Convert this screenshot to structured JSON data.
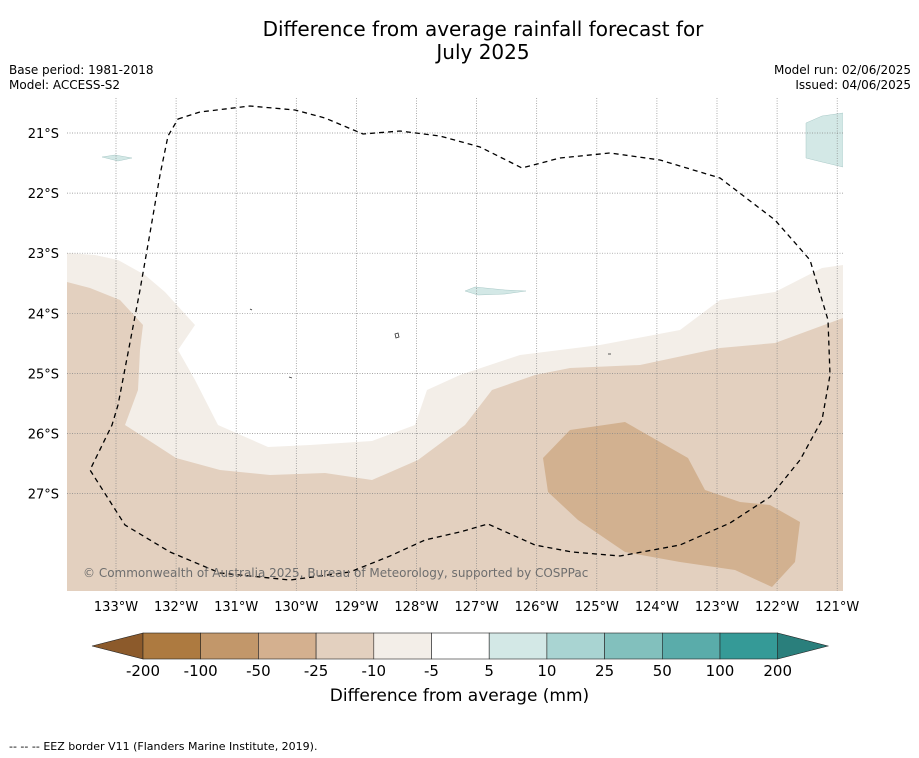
{
  "header": {
    "title_line1": "Difference from average rainfall forecast for",
    "title_line2": "July 2025",
    "base_period": "Base period: 1981-2018",
    "model": "Model: ACCESS-S2",
    "model_run": "Model run: 02/06/2025",
    "issued": "Issued: 04/06/2025"
  },
  "map": {
    "lat_labels": [
      "21°S",
      "22°S",
      "23°S",
      "24°S",
      "25°S",
      "26°S",
      "27°S"
    ],
    "lon_labels": [
      "133°W",
      "132°W",
      "131°W",
      "130°W",
      "129°W",
      "128°W",
      "127°W",
      "126°W",
      "125°W",
      "124°W",
      "123°W",
      "122°W",
      "121°W"
    ],
    "copyright": "© Commonwealth of Australia 2025, Bureau of Meteorology, supported by COSPPac",
    "gridlines": true
  },
  "colorbar": {
    "labels": [
      "-200",
      "-100",
      "-50",
      "-25",
      "-10",
      "-5",
      "5",
      "10",
      "25",
      "50",
      "100",
      "200"
    ],
    "colors": [
      "#ad7a40",
      "#c2976a",
      "#d4b08f",
      "#e3d0bf",
      "#f3eee8",
      "#ffffff",
      "#d3e8e6",
      "#a9d4d2",
      "#82c0bd",
      "#5aacaa",
      "#359a97"
    ],
    "extend_low_color": "#8c5a2b",
    "extend_high_color": "#2a7f7c",
    "title": "Difference from average (mm)"
  },
  "footer": {
    "legend_marker": "--  --  --",
    "legend_text": "EEZ border V11 (Flanders Marine Institute, 2019)."
  }
}
